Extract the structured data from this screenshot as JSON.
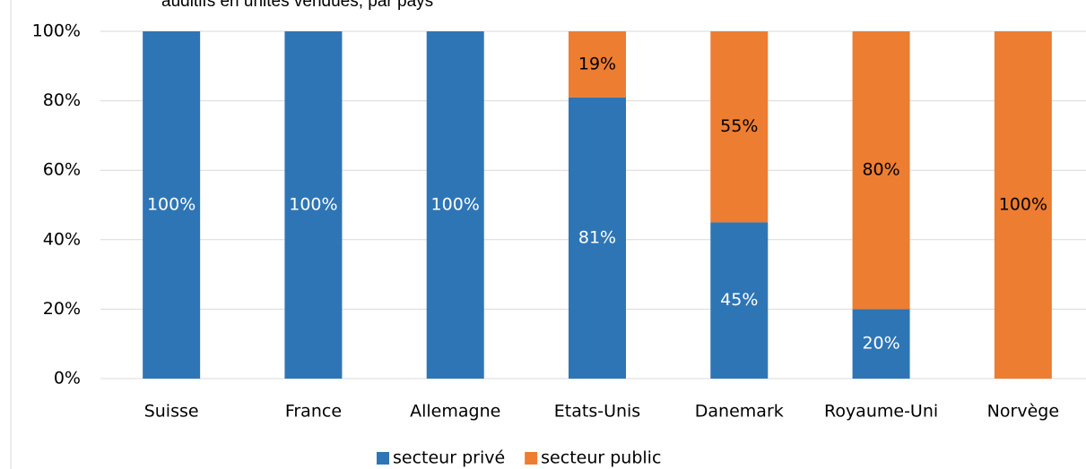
{
  "chart_data": {
    "type": "stacked_bar",
    "title": "auditifs en unités vendues, par pays",
    "categories": [
      "Suisse",
      "France",
      "Allemagne",
      "Etats-Unis",
      "Danemark",
      "Royaume-Uni",
      "Norvège"
    ],
    "series": [
      {
        "name": "secteur privé",
        "color": "#2e75b6",
        "values": [
          100,
          100,
          100,
          81,
          45,
          20,
          0
        ],
        "value_labels": [
          "100%",
          "100%",
          "100%",
          "81%",
          "45%",
          "20%",
          null
        ]
      },
      {
        "name": "secteur public",
        "color": "#ed7d31",
        "values": [
          0,
          0,
          0,
          19,
          55,
          80,
          100
        ],
        "value_labels": [
          null,
          null,
          null,
          "19%",
          "55%",
          "80%",
          "100%"
        ]
      }
    ],
    "ylim": [
      0,
      100
    ],
    "yticks": [
      {
        "value": 0,
        "label": "0%"
      },
      {
        "value": 20,
        "label": "20%"
      },
      {
        "value": 40,
        "label": "40%"
      },
      {
        "value": 60,
        "label": "60%"
      },
      {
        "value": 80,
        "label": "80%"
      },
      {
        "value": 100,
        "label": "100%"
      }
    ],
    "grid": true,
    "legend": "bottom"
  }
}
